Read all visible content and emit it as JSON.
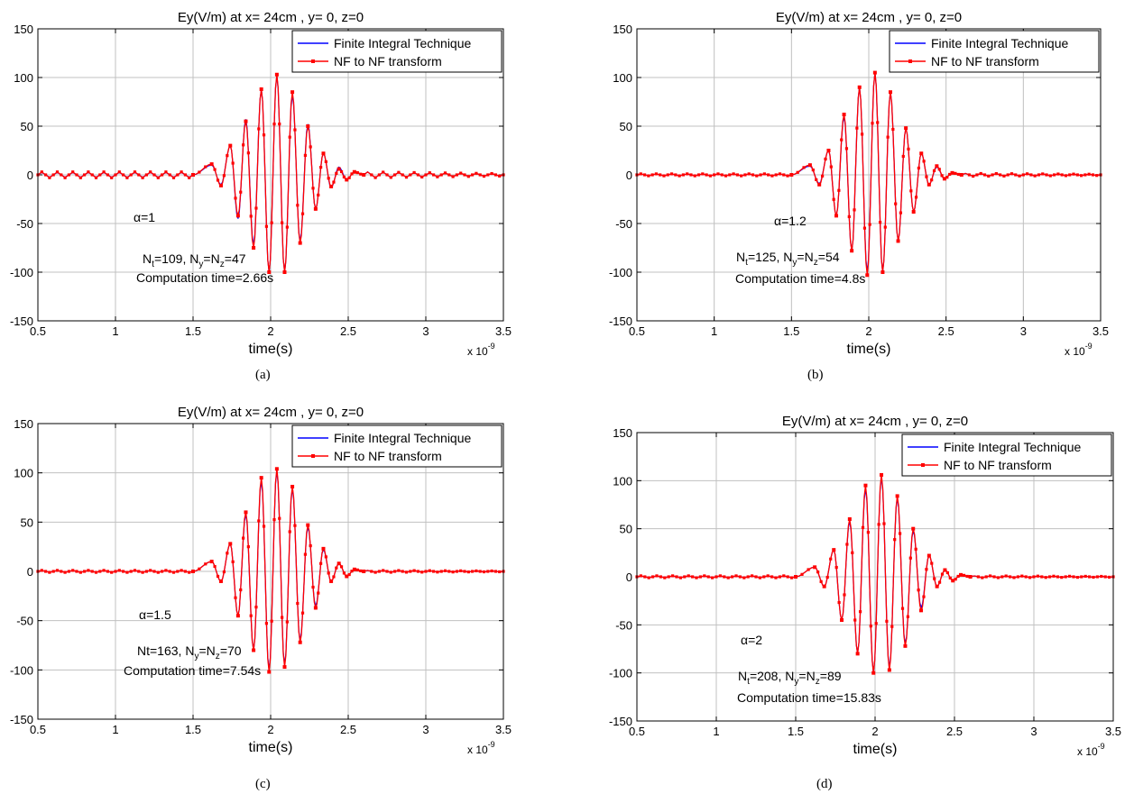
{
  "figure": {
    "shared": {
      "title": "Ey(V/m) at x= 24cm , y= 0, z=0",
      "xlabel": "time(s)",
      "x_exponent_base": "x 10",
      "x_exponent_power": "-9",
      "legend": [
        "Finite Integral Technique",
        "NF to NF transform"
      ],
      "legend_location": "top-right",
      "colors": {
        "fit": "#0000ff",
        "nf": "#ff0000",
        "grid": "#c0c0c0",
        "frame": "#000000"
      },
      "grid": true
    },
    "captions": [
      "(a)",
      "(b)",
      "(c)",
      "(d)"
    ]
  },
  "chart_data": [
    {
      "type": "line",
      "title": "Ey(V/m) at x= 24cm , y= 0, z=0",
      "xlabel": "time(s)",
      "ylabel": "",
      "xlim": [
        0.5,
        3.5
      ],
      "ylim": [
        -150,
        150
      ],
      "x_scale_note": "x 10^-9",
      "xticks": [
        "0.5",
        "1",
        "1.5",
        "2",
        "2.5",
        "3",
        "3.5"
      ],
      "yticks": [
        "150",
        "100",
        "50",
        "0",
        "-50",
        "-100",
        "-150"
      ],
      "annotations": [
        "α=1",
        "N|t|=109, N|y|=N|z|=47",
        "Computation time=2.66s"
      ],
      "caption": "(a)",
      "series": [
        {
          "name": "Finite Integral Technique",
          "color": "#0000ff",
          "marker": "none",
          "x": [
            1.5,
            1.62,
            1.68,
            1.74,
            1.79,
            1.84,
            1.89,
            1.94,
            1.99,
            2.04,
            2.09,
            2.14,
            2.19,
            2.24,
            2.29,
            2.34,
            2.39,
            2.44,
            2.49,
            2.54,
            2.6
          ],
          "y": [
            0,
            10,
            -10,
            30,
            -45,
            57,
            -72,
            88,
            -100,
            102,
            -100,
            82,
            -68,
            52,
            -35,
            22,
            -13,
            8,
            -5,
            3,
            0
          ]
        },
        {
          "name": "NF to NF transform",
          "color": "#ff0000",
          "marker": "dot",
          "x": [
            1.5,
            1.62,
            1.68,
            1.74,
            1.79,
            1.84,
            1.89,
            1.94,
            1.99,
            2.04,
            2.09,
            2.14,
            2.19,
            2.24,
            2.29,
            2.34,
            2.39,
            2.44,
            2.49,
            2.54,
            2.6
          ],
          "y": [
            0,
            11,
            -11,
            30,
            -42,
            55,
            -75,
            88,
            -100,
            103,
            -100,
            85,
            -70,
            50,
            -35,
            22,
            -12,
            6,
            -5,
            3,
            0
          ]
        }
      ],
      "baseline_ripple": {
        "left": 3,
        "right": 3
      }
    },
    {
      "type": "line",
      "title": "Ey(V/m) at x= 24cm , y= 0, z=0",
      "xlabel": "time(s)",
      "ylabel": "",
      "xlim": [
        0.5,
        3.5
      ],
      "ylim": [
        -150,
        150
      ],
      "x_scale_note": "x 10^-9",
      "xticks": [
        "0.5",
        "1",
        "1.5",
        "2",
        "2.5",
        "3",
        "3.5"
      ],
      "yticks": [
        "150",
        "100",
        "50",
        "0",
        "-50",
        "-100",
        "-150"
      ],
      "annotations": [
        "α=1.2",
        "N|t|=125, N|y|=N|z|=54",
        "Computation time=4.8s"
      ],
      "caption": "(b)",
      "series": [
        {
          "name": "Finite Integral Technique",
          "color": "#0000ff",
          "marker": "none",
          "x": [
            1.5,
            1.62,
            1.68,
            1.74,
            1.79,
            1.84,
            1.89,
            1.94,
            1.99,
            2.04,
            2.09,
            2.14,
            2.19,
            2.24,
            2.29,
            2.34,
            2.39,
            2.44,
            2.49,
            2.54,
            2.6
          ],
          "y": [
            0,
            9,
            -9,
            25,
            -42,
            60,
            -78,
            90,
            -100,
            105,
            -100,
            85,
            -68,
            48,
            -38,
            22,
            -10,
            8,
            -4,
            2,
            0
          ]
        },
        {
          "name": "NF to NF transform",
          "color": "#ff0000",
          "marker": "dot",
          "x": [
            1.5,
            1.62,
            1.68,
            1.74,
            1.79,
            1.84,
            1.89,
            1.94,
            1.99,
            2.04,
            2.09,
            2.14,
            2.19,
            2.24,
            2.29,
            2.34,
            2.39,
            2.44,
            2.49,
            2.54,
            2.6
          ],
          "y": [
            0,
            10,
            -10,
            25,
            -42,
            62,
            -78,
            90,
            -103,
            105,
            -100,
            85,
            -68,
            48,
            -38,
            22,
            -10,
            9,
            -4,
            2,
            0
          ]
        }
      ],
      "baseline_ripple": {
        "left": 1,
        "right": 1.5
      }
    },
    {
      "type": "line",
      "title": "Ey(V/m) at x= 24cm , y= 0, z=0",
      "xlabel": "time(s)",
      "ylabel": "",
      "xlim": [
        0.5,
        3.5
      ],
      "ylim": [
        -150,
        150
      ],
      "x_scale_note": "x 10^-9",
      "xticks": [
        "0.5",
        "1",
        "1.5",
        "2",
        "2.5",
        "3",
        "3.5"
      ],
      "yticks": [
        "150",
        "100",
        "50",
        "0",
        "-50",
        "-100",
        "-150"
      ],
      "annotations": [
        "α=1.5",
        "Nt=163, N|y|=N|z|=70",
        "Computation time=7.54s"
      ],
      "caption": "(c)",
      "series": [
        {
          "name": "Finite Integral Technique",
          "color": "#0000ff",
          "marker": "none",
          "x": [
            1.5,
            1.62,
            1.68,
            1.74,
            1.79,
            1.84,
            1.89,
            1.94,
            1.99,
            2.04,
            2.09,
            2.14,
            2.19,
            2.24,
            2.29,
            2.34,
            2.39,
            2.44,
            2.49,
            2.54,
            2.6
          ],
          "y": [
            0,
            10,
            -10,
            28,
            -45,
            58,
            -80,
            92,
            -100,
            102,
            -95,
            84,
            -70,
            45,
            -35,
            22,
            -10,
            8,
            -5,
            2,
            0
          ]
        },
        {
          "name": "NF to NF transform",
          "color": "#ff0000",
          "marker": "dot",
          "x": [
            1.5,
            1.62,
            1.68,
            1.74,
            1.79,
            1.84,
            1.89,
            1.94,
            1.99,
            2.04,
            2.09,
            2.14,
            2.19,
            2.24,
            2.29,
            2.34,
            2.39,
            2.44,
            2.49,
            2.54,
            2.6
          ],
          "y": [
            0,
            10,
            -10,
            28,
            -45,
            60,
            -80,
            95,
            -102,
            104,
            -97,
            86,
            -72,
            47,
            -37,
            23,
            -10,
            8,
            -5,
            2,
            0
          ]
        }
      ],
      "baseline_ripple": {
        "left": 1,
        "right": 1
      }
    },
    {
      "type": "line",
      "title": "Ey(V/m) at x= 24cm , y= 0, z=0",
      "xlabel": "time(s)",
      "ylabel": "",
      "xlim": [
        0.5,
        3.5
      ],
      "ylim": [
        -150,
        150
      ],
      "x_scale_note": "x 10^-9",
      "xticks": [
        "0.5",
        "1",
        "1.5",
        "2",
        "2.5",
        "3",
        "3.5"
      ],
      "yticks": [
        "150",
        "100",
        "50",
        "0",
        "-50",
        "-100",
        "-150"
      ],
      "annotations": [
        "α=2",
        "N|t|=208, N|y|=N|z|=89",
        "Computation time=15.83s"
      ],
      "caption": "(d)",
      "series": [
        {
          "name": "Finite Integral Technique",
          "color": "#0000ff",
          "marker": "none",
          "x": [
            1.5,
            1.62,
            1.68,
            1.74,
            1.79,
            1.84,
            1.89,
            1.94,
            1.99,
            2.04,
            2.09,
            2.14,
            2.19,
            2.24,
            2.29,
            2.34,
            2.39,
            2.44,
            2.49,
            2.54,
            2.6
          ],
          "y": [
            0,
            10,
            -10,
            28,
            -45,
            58,
            -80,
            92,
            -100,
            104,
            -95,
            82,
            -70,
            48,
            -32,
            22,
            -10,
            7,
            -4,
            2,
            0
          ]
        },
        {
          "name": "NF to NF transform",
          "color": "#ff0000",
          "marker": "dot",
          "x": [
            1.5,
            1.62,
            1.68,
            1.74,
            1.79,
            1.84,
            1.89,
            1.94,
            1.99,
            2.04,
            2.09,
            2.14,
            2.19,
            2.24,
            2.29,
            2.34,
            2.39,
            2.44,
            2.49,
            2.54,
            2.6
          ],
          "y": [
            0,
            10,
            -10,
            28,
            -45,
            60,
            -80,
            95,
            -100,
            106,
            -97,
            84,
            -72,
            50,
            -35,
            22,
            -10,
            7,
            -4,
            2,
            0
          ]
        }
      ],
      "baseline_ripple": {
        "left": 1,
        "right": 1
      }
    }
  ]
}
